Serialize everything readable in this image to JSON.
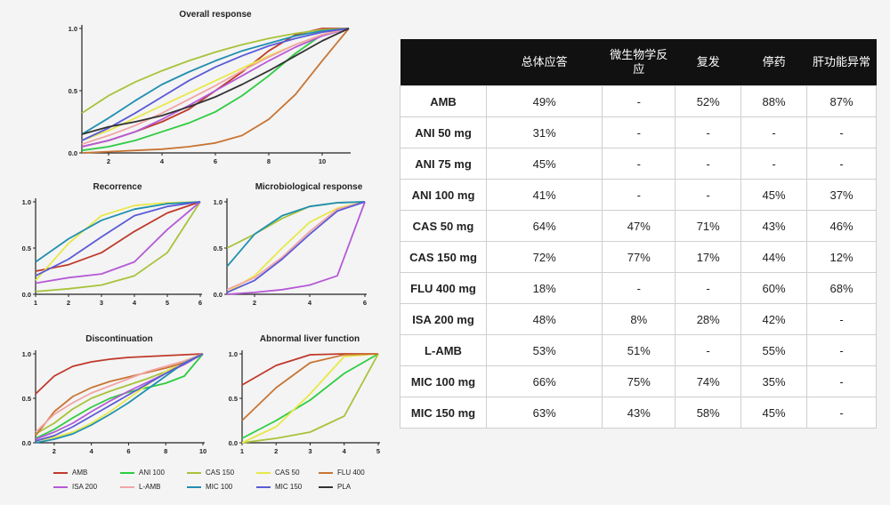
{
  "chart_data": [
    {
      "type": "line",
      "title": "Overall response",
      "xlim": [
        1,
        11
      ],
      "ylim": [
        0,
        1
      ],
      "xticks": [
        2,
        4,
        6,
        8,
        10
      ],
      "yticks": [
        0.0,
        0.5,
        1.0
      ],
      "ytick_labels": [
        "0.0",
        "0.5",
        "1.0"
      ],
      "series": [
        {
          "name": "AMB",
          "color": "#c0392b",
          "x": [
            1,
            2,
            3,
            4,
            5,
            6,
            7,
            8,
            9,
            10,
            11
          ],
          "y": [
            0.05,
            0.1,
            0.17,
            0.25,
            0.35,
            0.5,
            0.65,
            0.82,
            0.95,
            1.0,
            1.0
          ]
        },
        {
          "name": "ANI 100",
          "color": "#2ecc40",
          "x": [
            1,
            2,
            3,
            4,
            5,
            6,
            7,
            8,
            9,
            10,
            11
          ],
          "y": [
            0.02,
            0.05,
            0.1,
            0.17,
            0.24,
            0.33,
            0.46,
            0.62,
            0.8,
            0.95,
            1.0
          ]
        },
        {
          "name": "CAS 150",
          "color": "#a7c33a",
          "x": [
            1,
            2,
            3,
            4,
            5,
            6,
            7,
            8,
            9,
            10,
            11
          ],
          "y": [
            0.32,
            0.46,
            0.57,
            0.66,
            0.74,
            0.81,
            0.87,
            0.92,
            0.96,
            0.99,
            1.0
          ]
        },
        {
          "name": "CAS 50",
          "color": "#e8e84a",
          "x": [
            1,
            2,
            3,
            4,
            5,
            6,
            7,
            8,
            9,
            10,
            11
          ],
          "y": [
            0.1,
            0.18,
            0.28,
            0.38,
            0.48,
            0.58,
            0.68,
            0.78,
            0.87,
            0.95,
            1.0
          ]
        },
        {
          "name": "FLU 400",
          "color": "#c87533",
          "x": [
            1,
            2,
            3,
            4,
            5,
            6,
            7,
            8,
            9,
            10,
            11
          ],
          "y": [
            0.0,
            0.01,
            0.02,
            0.03,
            0.05,
            0.08,
            0.14,
            0.27,
            0.47,
            0.74,
            1.0
          ]
        },
        {
          "name": "ISA 200",
          "color": "#b55ad6",
          "x": [
            1,
            2,
            3,
            4,
            5,
            6,
            7,
            8,
            9,
            10,
            11
          ],
          "y": [
            0.05,
            0.1,
            0.17,
            0.27,
            0.38,
            0.5,
            0.62,
            0.74,
            0.85,
            0.94,
            1.0
          ]
        },
        {
          "name": "L-AMB",
          "color": "#f2a5a5",
          "x": [
            1,
            2,
            3,
            4,
            5,
            6,
            7,
            8,
            9,
            10,
            11
          ],
          "y": [
            0.07,
            0.14,
            0.22,
            0.32,
            0.43,
            0.54,
            0.66,
            0.77,
            0.87,
            0.95,
            1.0
          ]
        },
        {
          "name": "MIC 100",
          "color": "#1f8fb0",
          "x": [
            1,
            2,
            3,
            4,
            5,
            6,
            7,
            8,
            9,
            10,
            11
          ],
          "y": [
            0.15,
            0.28,
            0.42,
            0.55,
            0.65,
            0.74,
            0.82,
            0.88,
            0.94,
            0.98,
            1.0
          ]
        },
        {
          "name": "MIC 150",
          "color": "#5b5bd6",
          "x": [
            1,
            2,
            3,
            4,
            5,
            6,
            7,
            8,
            9,
            10,
            11
          ],
          "y": [
            0.1,
            0.2,
            0.32,
            0.45,
            0.58,
            0.69,
            0.78,
            0.86,
            0.92,
            0.97,
            1.0
          ]
        },
        {
          "name": "PLA",
          "color": "#333333",
          "x": [
            1,
            2,
            3,
            4,
            5,
            6,
            7,
            8,
            9,
            10,
            11
          ],
          "y": [
            0.15,
            0.21,
            0.25,
            0.3,
            0.37,
            0.45,
            0.55,
            0.66,
            0.78,
            0.9,
            1.0
          ]
        }
      ]
    },
    {
      "type": "line",
      "title": "Recorrence",
      "xlim": [
        1,
        6
      ],
      "ylim": [
        0,
        1
      ],
      "xticks": [
        1,
        2,
        3,
        4,
        5,
        6
      ],
      "yticks": [
        0.0,
        0.5,
        1.0
      ],
      "ytick_labels": [
        "0.0",
        "0.5",
        "1.0"
      ],
      "series": [
        {
          "name": "AMB",
          "color": "#c0392b",
          "x": [
            1,
            2,
            3,
            4,
            5,
            6
          ],
          "y": [
            0.25,
            0.32,
            0.45,
            0.68,
            0.88,
            1.0
          ]
        },
        {
          "name": "CAS 150",
          "color": "#a7c33a",
          "x": [
            1,
            2,
            3,
            4,
            5,
            6
          ],
          "y": [
            0.03,
            0.06,
            0.1,
            0.2,
            0.45,
            1.0
          ]
        },
        {
          "name": "CAS 50",
          "color": "#e8e84a",
          "x": [
            1,
            2,
            3,
            4,
            5,
            6
          ],
          "y": [
            0.15,
            0.55,
            0.85,
            0.96,
            0.99,
            1.0
          ]
        },
        {
          "name": "ISA 200",
          "color": "#b55ad6",
          "x": [
            1,
            2,
            3,
            4,
            5,
            6
          ],
          "y": [
            0.12,
            0.18,
            0.22,
            0.35,
            0.7,
            1.0
          ]
        },
        {
          "name": "MIC 100",
          "color": "#1f8fb0",
          "x": [
            1,
            2,
            3,
            4,
            5,
            6
          ],
          "y": [
            0.35,
            0.6,
            0.8,
            0.92,
            0.98,
            1.0
          ]
        },
        {
          "name": "MIC 150",
          "color": "#5b5bd6",
          "x": [
            1,
            2,
            3,
            4,
            5,
            6
          ],
          "y": [
            0.2,
            0.38,
            0.62,
            0.85,
            0.95,
            1.0
          ]
        }
      ]
    },
    {
      "type": "line",
      "title": "Microbiological response",
      "xlim": [
        1,
        6
      ],
      "ylim": [
        0,
        1
      ],
      "xticks": [
        2,
        4,
        6
      ],
      "yticks": [
        0.0,
        0.5,
        1.0
      ],
      "ytick_labels": [
        "0.0",
        "0.5",
        "1.0"
      ],
      "series": [
        {
          "name": "CAS 150",
          "color": "#a7c33a",
          "x": [
            1,
            2,
            3,
            4,
            5,
            6
          ],
          "y": [
            0.5,
            0.65,
            0.82,
            0.95,
            0.99,
            1.0
          ]
        },
        {
          "name": "CAS 50",
          "color": "#e8e84a",
          "x": [
            1,
            2,
            3,
            4,
            5,
            6
          ],
          "y": [
            0.02,
            0.2,
            0.5,
            0.78,
            0.93,
            1.0
          ]
        },
        {
          "name": "ISA 200",
          "color": "#b55ad6",
          "x": [
            1,
            2,
            3,
            4,
            5,
            6
          ],
          "y": [
            0.0,
            0.02,
            0.05,
            0.1,
            0.2,
            1.0
          ]
        },
        {
          "name": "L-AMB",
          "color": "#f2a5a5",
          "x": [
            1,
            2,
            3,
            4,
            5,
            6
          ],
          "y": [
            0.05,
            0.18,
            0.4,
            0.68,
            0.92,
            1.0
          ]
        },
        {
          "name": "MIC 100",
          "color": "#1f8fb0",
          "x": [
            1,
            2,
            3,
            4,
            5,
            6
          ],
          "y": [
            0.3,
            0.65,
            0.85,
            0.95,
            0.99,
            1.0
          ]
        },
        {
          "name": "MIC 150",
          "color": "#5b5bd6",
          "x": [
            1,
            2,
            3,
            4,
            5,
            6
          ],
          "y": [
            0.02,
            0.15,
            0.38,
            0.65,
            0.9,
            1.0
          ]
        }
      ]
    },
    {
      "type": "line",
      "title": "Discontinuation",
      "xlim": [
        1,
        10
      ],
      "ylim": [
        0,
        1
      ],
      "xticks": [
        2,
        4,
        6,
        8,
        10
      ],
      "yticks": [
        0.0,
        0.5,
        1.0
      ],
      "ytick_labels": [
        "0.0",
        "0.5",
        "1.0"
      ],
      "series": [
        {
          "name": "AMB",
          "color": "#c0392b",
          "x": [
            1,
            2,
            3,
            4,
            5,
            6,
            7,
            8,
            9,
            10
          ],
          "y": [
            0.55,
            0.75,
            0.86,
            0.91,
            0.94,
            0.96,
            0.97,
            0.98,
            0.99,
            1.0
          ]
        },
        {
          "name": "ANI 100",
          "color": "#2ecc40",
          "x": [
            1,
            2,
            3,
            4,
            5,
            6,
            7,
            8,
            9,
            10
          ],
          "y": [
            0.05,
            0.15,
            0.28,
            0.4,
            0.5,
            0.57,
            0.62,
            0.67,
            0.75,
            1.0
          ]
        },
        {
          "name": "CAS 150",
          "color": "#a7c33a",
          "x": [
            1,
            2,
            3,
            4,
            5,
            6,
            7,
            8,
            9,
            10
          ],
          "y": [
            0.1,
            0.22,
            0.38,
            0.5,
            0.58,
            0.65,
            0.72,
            0.8,
            0.88,
            1.0
          ]
        },
        {
          "name": "CAS 50",
          "color": "#e8e84a",
          "x": [
            1,
            2,
            3,
            4,
            5,
            6,
            7,
            8,
            9,
            10
          ],
          "y": [
            0.02,
            0.06,
            0.12,
            0.22,
            0.35,
            0.5,
            0.65,
            0.8,
            0.92,
            1.0
          ]
        },
        {
          "name": "FLU 400",
          "color": "#c87533",
          "x": [
            1,
            2,
            3,
            4,
            5,
            6,
            7,
            8,
            9,
            10
          ],
          "y": [
            0.08,
            0.35,
            0.52,
            0.62,
            0.69,
            0.74,
            0.79,
            0.84,
            0.9,
            1.0
          ]
        },
        {
          "name": "ISA 200",
          "color": "#b55ad6",
          "x": [
            1,
            2,
            3,
            4,
            5,
            6,
            7,
            8,
            9,
            10
          ],
          "y": [
            0.04,
            0.12,
            0.22,
            0.35,
            0.47,
            0.58,
            0.68,
            0.78,
            0.88,
            1.0
          ]
        },
        {
          "name": "L-AMB",
          "color": "#f2a5a5",
          "x": [
            1,
            2,
            3,
            4,
            5,
            6,
            7,
            8,
            9,
            10
          ],
          "y": [
            0.12,
            0.32,
            0.45,
            0.56,
            0.64,
            0.72,
            0.8,
            0.86,
            0.92,
            1.0
          ]
        },
        {
          "name": "MIC 100",
          "color": "#1f8fb0",
          "x": [
            1,
            2,
            3,
            4,
            5,
            6,
            7,
            8,
            9,
            10
          ],
          "y": [
            0.0,
            0.04,
            0.1,
            0.2,
            0.32,
            0.45,
            0.6,
            0.75,
            0.9,
            1.0
          ]
        },
        {
          "name": "MIC 150",
          "color": "#5b5bd6",
          "x": [
            1,
            2,
            3,
            4,
            5,
            6,
            7,
            8,
            9,
            10
          ],
          "y": [
            0.02,
            0.08,
            0.18,
            0.3,
            0.42,
            0.54,
            0.66,
            0.78,
            0.89,
            1.0
          ]
        }
      ]
    },
    {
      "type": "line",
      "title": "Abnormal liver function",
      "xlim": [
        1,
        5
      ],
      "ylim": [
        0,
        1
      ],
      "xticks": [
        1,
        2,
        3,
        4,
        5
      ],
      "yticks": [
        0.0,
        0.5,
        1.0
      ],
      "ytick_labels": [
        "0.0",
        "0.5",
        "1.0"
      ],
      "series": [
        {
          "name": "AMB",
          "color": "#c0392b",
          "x": [
            1,
            2,
            3,
            4,
            5
          ],
          "y": [
            0.65,
            0.87,
            0.99,
            1.0,
            1.0
          ]
        },
        {
          "name": "ANI 100",
          "color": "#2ecc40",
          "x": [
            1,
            2,
            3,
            4,
            5
          ],
          "y": [
            0.05,
            0.25,
            0.48,
            0.78,
            1.0
          ]
        },
        {
          "name": "CAS 150",
          "color": "#a7c33a",
          "x": [
            1,
            2,
            3,
            4,
            5
          ],
          "y": [
            0.0,
            0.05,
            0.12,
            0.3,
            1.0
          ]
        },
        {
          "name": "CAS 50",
          "color": "#e8e84a",
          "x": [
            1,
            2,
            3,
            4,
            5
          ],
          "y": [
            0.0,
            0.18,
            0.55,
            0.97,
            1.0
          ]
        },
        {
          "name": "FLU 400",
          "color": "#c87533",
          "x": [
            1,
            2,
            3,
            4,
            5
          ],
          "y": [
            0.25,
            0.62,
            0.9,
            0.99,
            1.0
          ]
        }
      ]
    }
  ],
  "legend": [
    {
      "name": "AMB",
      "color": "#c0392b"
    },
    {
      "name": "ANI 100",
      "color": "#2ecc40"
    },
    {
      "name": "CAS 150",
      "color": "#a7c33a"
    },
    {
      "name": "CAS 50",
      "color": "#e8e84a"
    },
    {
      "name": "FLU 400",
      "color": "#c87533"
    },
    {
      "name": "ISA 200",
      "color": "#b55ad6"
    },
    {
      "name": "L-AMB",
      "color": "#f2a5a5"
    },
    {
      "name": "MIC 100",
      "color": "#1f8fb0"
    },
    {
      "name": "MIC 150",
      "color": "#5b5bd6"
    },
    {
      "name": "PLA",
      "color": "#333333"
    }
  ],
  "table": {
    "headers": [
      "",
      "总体应答",
      "微生物学反应",
      "复发",
      "停药",
      "肝功能异常"
    ],
    "rows": [
      [
        "AMB",
        "49%",
        "-",
        "52%",
        "88%",
        "87%"
      ],
      [
        "ANI 50 mg",
        "31%",
        "-",
        "-",
        "-",
        "-"
      ],
      [
        "ANI 75 mg",
        "45%",
        "-",
        "-",
        "-",
        "-"
      ],
      [
        "ANI 100 mg",
        "41%",
        "-",
        "-",
        "45%",
        "37%"
      ],
      [
        "CAS 50 mg",
        "64%",
        "47%",
        "71%",
        "43%",
        "46%"
      ],
      [
        "CAS 150 mg",
        "72%",
        "77%",
        "17%",
        "44%",
        "12%"
      ],
      [
        "FLU 400 mg",
        "18%",
        "-",
        "-",
        "60%",
        "68%"
      ],
      [
        "ISA 200 mg",
        "48%",
        "8%",
        "28%",
        "42%",
        "-"
      ],
      [
        "L-AMB",
        "53%",
        "51%",
        "-",
        "55%",
        "-"
      ],
      [
        "MIC 100 mg",
        "66%",
        "75%",
        "74%",
        "35%",
        "-"
      ],
      [
        "MIC 150 mg",
        "63%",
        "43%",
        "58%",
        "45%",
        "-"
      ]
    ]
  }
}
